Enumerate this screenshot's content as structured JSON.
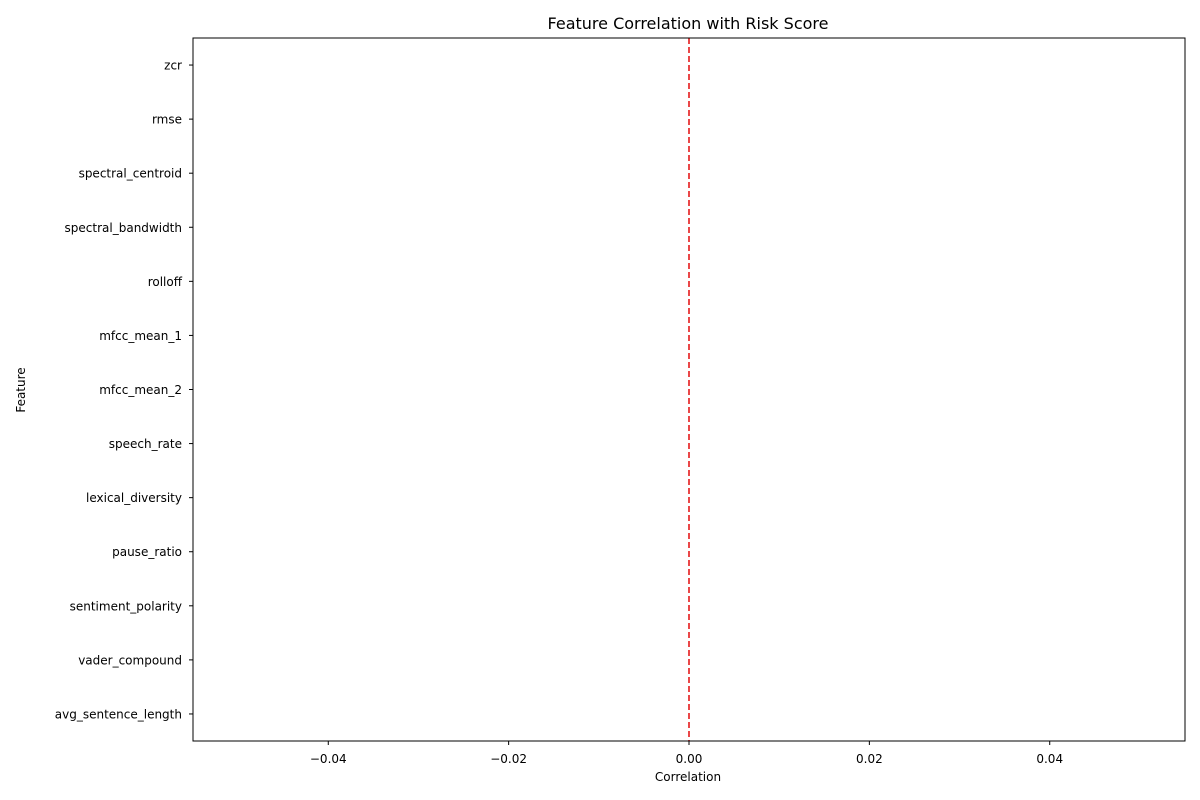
{
  "chart_data": {
    "type": "bar",
    "orientation": "horizontal",
    "title": "Feature Correlation with Risk Score",
    "xlabel": "Correlation",
    "ylabel": "Feature",
    "categories": [
      "zcr",
      "rmse",
      "spectral_centroid",
      "spectral_bandwidth",
      "rolloff",
      "mfcc_mean_1",
      "mfcc_mean_2",
      "speech_rate",
      "lexical_diversity",
      "pause_ratio",
      "sentiment_polarity",
      "vader_compound",
      "avg_sentence_length"
    ],
    "values": [
      0,
      0,
      0,
      0,
      0,
      0,
      0,
      0,
      0,
      0,
      0,
      0,
      0
    ],
    "xlim": [
      -0.055,
      0.055
    ],
    "xticks": [
      -0.04,
      -0.02,
      0.0,
      0.02,
      0.04
    ],
    "xtick_labels": [
      "−0.04",
      "−0.02",
      "0.00",
      "0.02",
      "0.04"
    ],
    "reference_line": {
      "x": 0.0,
      "style": "dashed",
      "color": "#e41a1c"
    },
    "grid": false,
    "legend": "none"
  }
}
